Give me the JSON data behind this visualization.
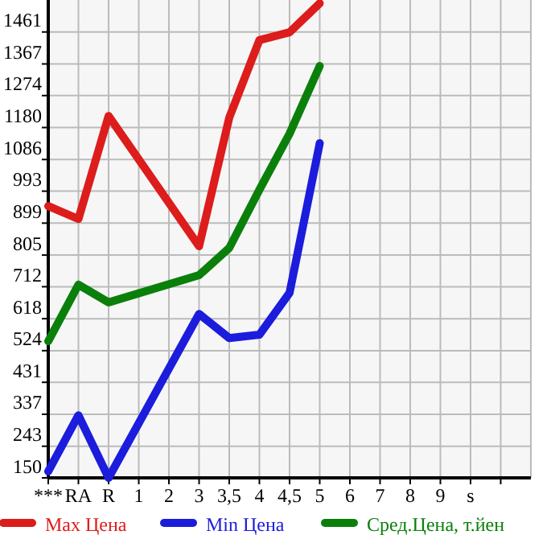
{
  "chart_data": {
    "type": "line",
    "categories": [
      "***",
      "RA",
      "R",
      "1",
      "2",
      "3",
      "3,5",
      "4",
      "4,5",
      "5",
      "6",
      "7",
      "8",
      "9",
      "s",
      null
    ],
    "series": [
      {
        "name": "Max Цена",
        "color": "#dd1c1c",
        "values": [
          949,
          911,
          1214,
          null,
          null,
          831,
          1209,
          1437,
          1460,
          1545,
          null,
          null,
          null,
          null,
          null,
          null
        ]
      },
      {
        "name": "Min Цена",
        "color": "#1c1cdd",
        "values": [
          169,
          334,
          150,
          null,
          null,
          632,
          561,
          571,
          694,
          1134,
          null,
          null,
          null,
          null,
          null,
          null
        ]
      },
      {
        "name": "Сред.Цена, т.йен",
        "color": "#0a800a",
        "values": [
          552,
          718,
          666,
          null,
          null,
          746,
          826,
          997,
          1162,
          1361,
          null,
          null,
          null,
          null,
          null,
          null
        ]
      }
    ],
    "ylim": [
      150,
      1555
    ],
    "yticks": [
      150,
      243,
      337,
      431,
      524,
      618,
      712,
      805,
      899,
      993,
      1086,
      1180,
      1274,
      1367,
      1461
    ],
    "grid": true,
    "legend": "bottom",
    "line_style": "solid"
  }
}
